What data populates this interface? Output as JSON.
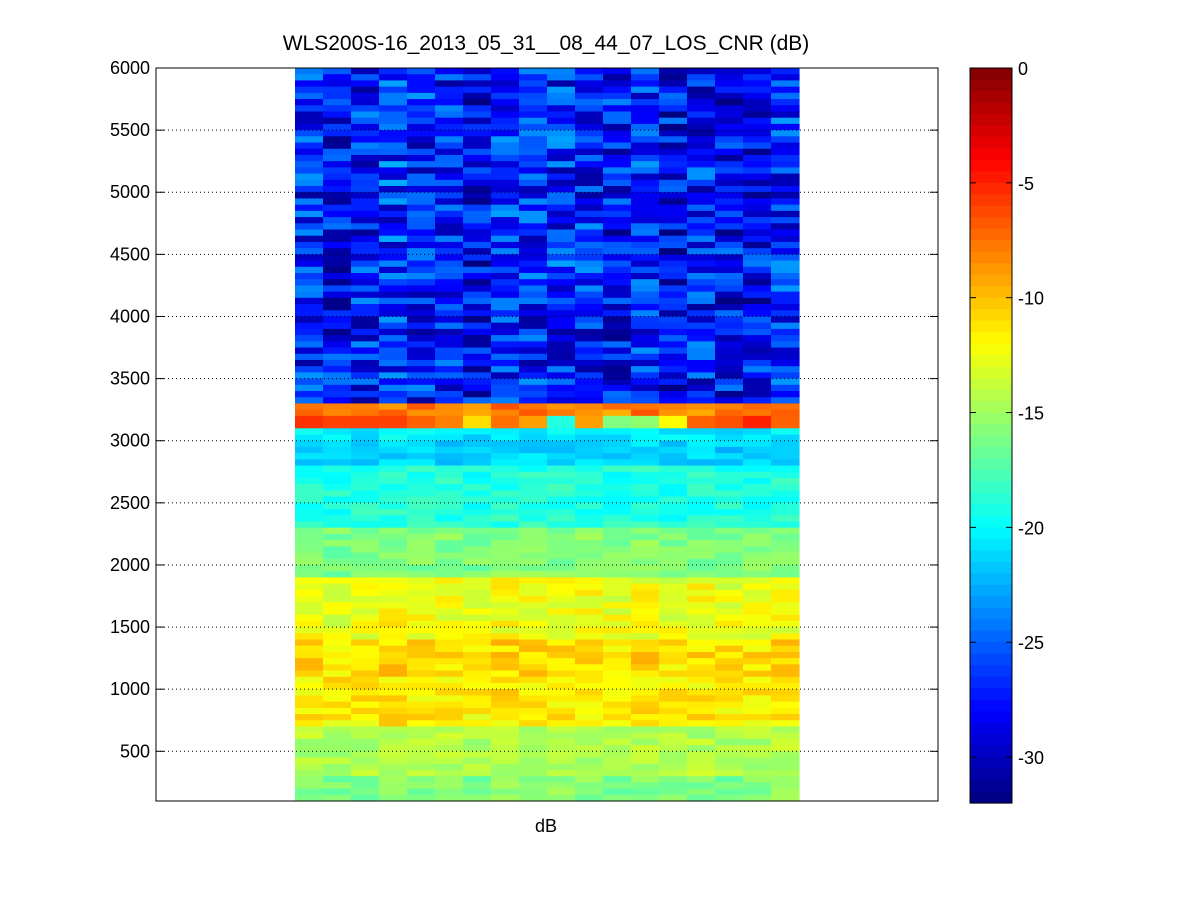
{
  "chart_data": {
    "type": "heatmap",
    "title": "WLS200S-16_2013_05_31__08_44_07_LOS_CNR (dB)",
    "xlabel": "dB",
    "ylabel": "",
    "ylim": [
      100,
      6000
    ],
    "y_ticks": [
      500,
      1000,
      1500,
      2000,
      2500,
      3000,
      3500,
      4000,
      4500,
      5000,
      5500,
      6000
    ],
    "y_tick_labels": [
      "500",
      "1000",
      "1500",
      "2000",
      "2500",
      "3000",
      "3500",
      "4000",
      "4500",
      "5000",
      "5500",
      "6000"
    ],
    "grid": "horizontal dotted",
    "colormap": "jet",
    "colorbar": {
      "range": [
        -32,
        0
      ],
      "ticks": [
        0,
        -5,
        -10,
        -15,
        -20,
        -25,
        -30
      ],
      "tick_labels": [
        "0",
        "-5",
        "-10",
        "-15",
        "-20",
        "-25",
        "-30"
      ]
    },
    "columns": 18,
    "altitude_step": 50,
    "bands": [
      {
        "from": 6000,
        "to": 3300,
        "value": -27.5
      },
      {
        "from": 3300,
        "to": 3200,
        "value": -8.0
      },
      {
        "from": 3200,
        "to": 3100,
        "value": -6.5
      },
      {
        "from": 3100,
        "to": 3000,
        "value": -20.5
      },
      {
        "from": 3000,
        "to": 2800,
        "value": -21.5
      },
      {
        "from": 2800,
        "to": 2300,
        "value": -19.0
      },
      {
        "from": 2300,
        "to": 1900,
        "value": -16.0
      },
      {
        "from": 1900,
        "to": 1400,
        "value": -12.5
      },
      {
        "from": 1400,
        "to": 1100,
        "value": -11.0
      },
      {
        "from": 1100,
        "to": 700,
        "value": -11.5
      },
      {
        "from": 700,
        "to": 300,
        "value": -14.5
      },
      {
        "from": 300,
        "to": 100,
        "value": -16.0
      }
    ],
    "hot_cells_3100_3200": [
      -5.5,
      -6.0,
      -6.0,
      -6.0,
      -7.0,
      -8.0,
      -11.0,
      -7.5,
      -9.0,
      -19.0,
      -9.0,
      -16.0,
      -15.5,
      -12.0,
      -7.0,
      -6.5,
      -5.0,
      -7.0
    ]
  }
}
